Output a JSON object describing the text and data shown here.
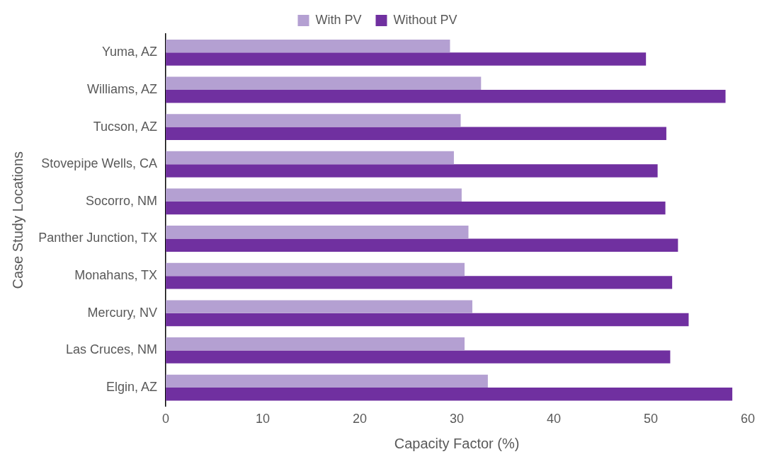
{
  "chart_data": {
    "type": "bar",
    "orientation": "horizontal",
    "xlabel": "Capacity Factor (%)",
    "ylabel": "Case Study Locations",
    "categories": [
      "Yuma, AZ",
      "Williams, AZ",
      "Tucson, AZ",
      "Stovepipe Wells, CA",
      "Socorro, NM",
      "Panther Junction, TX",
      "Monahans, TX",
      "Mercury, NV",
      "Las Cruces, NM",
      "Elgin, AZ"
    ],
    "series": [
      {
        "name": "With PV",
        "color": "#b4a0d2",
        "values": [
          29.3,
          32.5,
          30.4,
          29.7,
          30.5,
          31.2,
          30.8,
          31.6,
          30.8,
          33.2
        ]
      },
      {
        "name": "Without PV",
        "color": "#7030a0",
        "values": [
          49.5,
          57.7,
          51.6,
          50.7,
          51.5,
          52.8,
          52.2,
          53.9,
          52.0,
          58.4
        ]
      }
    ],
    "xlim": [
      0,
      60
    ],
    "xticks": [
      0,
      10,
      20,
      30,
      40,
      50,
      60
    ],
    "grid": false,
    "legend": "top"
  }
}
